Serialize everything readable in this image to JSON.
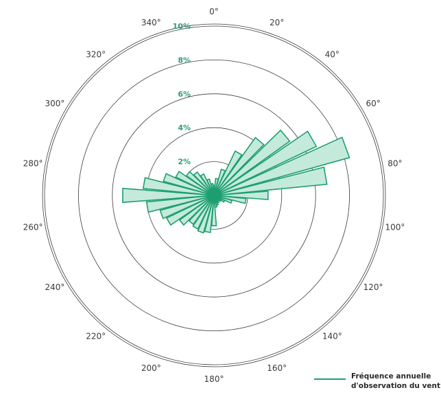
{
  "chart_data": {
    "type": "polar-bar",
    "series": [
      {
        "name": "Fréquence annuelle d'observation du vent",
        "directions": [
          0,
          10,
          20,
          30,
          40,
          50,
          60,
          70,
          80,
          90,
          100,
          110,
          120,
          130,
          140,
          150,
          160,
          170,
          180,
          190,
          200,
          210,
          220,
          230,
          240,
          250,
          260,
          270,
          280,
          290,
          300,
          310,
          320,
          330,
          340,
          350
        ],
        "values": [
          0.6,
          1.0,
          1.6,
          2.9,
          4.2,
          5.5,
          6.7,
          8.3,
          6.7,
          3.2,
          1.9,
          1.1,
          0.7,
          0.5,
          0.4,
          0.5,
          0.6,
          0.7,
          1.8,
          2.2,
          2.3,
          2.2,
          2.1,
          2.5,
          3.1,
          3.3,
          4.0,
          5.4,
          4.2,
          3.1,
          2.5,
          2.0,
          1.7,
          1.4,
          1.0,
          0.7
        ],
        "color": "#1e9e70",
        "fill": "#c4eadc"
      }
    ],
    "rmax": 10,
    "radial_ticks": [
      2,
      4,
      6,
      8,
      10
    ],
    "radial_tick_labels": [
      "2%",
      "4%",
      "6%",
      "8%",
      "10%"
    ],
    "angular_ticks": [
      0,
      20,
      40,
      60,
      80,
      100,
      120,
      140,
      160,
      180,
      200,
      220,
      240,
      260,
      280,
      300,
      320,
      340
    ],
    "angular_tick_labels": [
      "0°",
      "20°",
      "40°",
      "60°",
      "80°",
      "100°",
      "120°",
      "140°",
      "160°",
      "180°",
      "200°",
      "220°",
      "240°",
      "260°",
      "280°",
      "300°",
      "320°",
      "340°"
    ],
    "outer_circle": true,
    "legend_position": "bottom-right"
  },
  "legend": {
    "line1": "Fréquence annuelle",
    "line2": "d'observation du vent"
  }
}
